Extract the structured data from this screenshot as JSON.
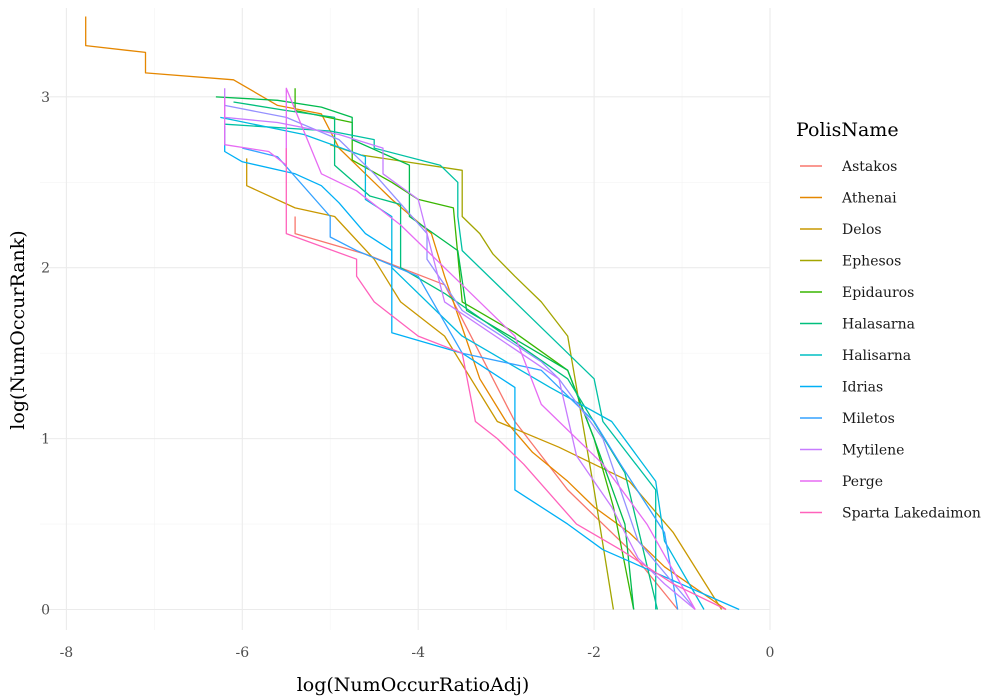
{
  "chart_data": {
    "type": "line",
    "title": "",
    "xlabel": "log(NumOccurRatioAdj)",
    "ylabel": "log(NumOccurRank)",
    "xlim": [
      -8.3,
      0.0
    ],
    "ylim": [
      -0.12,
      3.52
    ],
    "xticks": [
      -8,
      -6,
      -4,
      -2,
      0
    ],
    "xtick_labels": [
      "-8",
      "-6",
      "-4",
      "-2",
      "0"
    ],
    "yticks": [
      0,
      1,
      2,
      3
    ],
    "ytick_labels": [
      "0",
      "1",
      "2",
      "3"
    ],
    "grid": true,
    "legend_title": "PolisName",
    "legend_position": "right",
    "series": [
      {
        "name": "Astakos",
        "color": "#F8766D",
        "x": [
          -5.4,
          -5.4,
          -4.6,
          -3.7,
          -2.9,
          -2.3,
          -1.6,
          -1.05
        ],
        "y": [
          2.3,
          2.2,
          2.08,
          1.9,
          1.1,
          0.7,
          0.35,
          0.0
        ]
      },
      {
        "name": "Athenai",
        "color": "#E58700",
        "x": [
          -7.78,
          -7.78,
          -7.1,
          -7.1,
          -6.1,
          -5.6,
          -5.1,
          -4.9,
          -4.6,
          -4.3,
          -3.85,
          -3.7,
          -3.5,
          -3.3,
          -3.0,
          -2.7,
          -2.3,
          -2.0,
          -1.6,
          -1.2,
          -0.5
        ],
        "y": [
          3.47,
          3.3,
          3.26,
          3.14,
          3.1,
          2.95,
          2.9,
          2.7,
          2.55,
          2.4,
          2.2,
          1.95,
          1.65,
          1.35,
          1.1,
          0.92,
          0.75,
          0.6,
          0.45,
          0.25,
          0.0
        ]
      },
      {
        "name": "Delos",
        "color": "#C99800",
        "x": [
          -5.95,
          -5.95,
          -5.4,
          -4.95,
          -4.5,
          -4.2,
          -3.7,
          -3.1,
          -2.4,
          -1.6,
          -1.1,
          -0.55
        ],
        "y": [
          2.64,
          2.48,
          2.35,
          2.3,
          2.05,
          1.8,
          1.6,
          1.1,
          0.95,
          0.75,
          0.45,
          0.0
        ]
      },
      {
        "name": "Ephesos",
        "color": "#A3A500",
        "x": [
          -5.0,
          -4.65,
          -3.5,
          -3.5,
          -3.3,
          -3.15,
          -2.9,
          -2.6,
          -2.3,
          -2.0,
          -1.78
        ],
        "y": [
          2.72,
          2.66,
          2.57,
          2.3,
          2.2,
          2.08,
          1.95,
          1.8,
          1.6,
          0.7,
          0.0
        ]
      },
      {
        "name": "Epidauros",
        "color": "#39B600",
        "x": [
          -5.4,
          -5.4,
          -4.75,
          -4.75,
          -4.3,
          -4.0,
          -3.6,
          -3.5,
          -2.9,
          -2.3,
          -2.0,
          -1.78,
          -1.55
        ],
        "y": [
          3.05,
          2.92,
          2.85,
          2.63,
          2.5,
          2.4,
          2.35,
          1.8,
          1.62,
          1.4,
          1.0,
          0.6,
          0.0
        ]
      },
      {
        "name": "Epidauros",
        "color": "#00BB4E",
        "x": [
          -6.3,
          -5.6,
          -5.1,
          -4.75,
          -4.75,
          -4.1,
          -4.1,
          -3.55,
          -3.45,
          -2.3,
          -2.0,
          -1.65,
          -1.55
        ],
        "y": [
          3.0,
          2.98,
          2.94,
          2.88,
          2.75,
          2.6,
          2.3,
          2.1,
          1.75,
          1.4,
          1.0,
          0.5,
          0.0
        ]
      },
      {
        "name": "Halasarna",
        "color": "#00BF7D",
        "x": [
          -6.1,
          -5.5,
          -4.95,
          -4.95,
          -4.55,
          -4.2,
          -4.2,
          -3.7,
          -3.0,
          -2.3,
          -1.65,
          -1.28
        ],
        "y": [
          2.97,
          2.92,
          2.88,
          2.6,
          2.42,
          2.37,
          2.0,
          1.85,
          1.6,
          1.35,
          0.8,
          0.0
        ]
      },
      {
        "name": "Halisarna",
        "color": "#00C1A3",
        "x": [
          -6.2,
          -5.0,
          -4.5,
          -4.5,
          -3.75,
          -3.55,
          -3.55,
          -3.5,
          -2.0,
          -1.9,
          -1.3,
          -1.3
        ],
        "y": [
          2.84,
          2.8,
          2.75,
          2.7,
          2.6,
          2.5,
          2.3,
          2.1,
          1.35,
          1.1,
          0.7,
          0.0
        ]
      },
      {
        "name": "Halisarna",
        "color": "#00BAE0",
        "x": [
          -6.25,
          -5.3,
          -4.6,
          -4.6,
          -4.3,
          -4.3,
          -3.5,
          -2.5,
          -1.8,
          -1.3,
          -1.2,
          -0.75
        ],
        "y": [
          2.88,
          2.78,
          2.65,
          2.4,
          2.3,
          2.0,
          1.6,
          1.3,
          1.1,
          0.75,
          0.4,
          0.0
        ]
      },
      {
        "name": "Idrias",
        "color": "#00B0F6",
        "x": [
          -6.2,
          -6.2,
          -6.0,
          -5.4,
          -5.1,
          -4.9,
          -4.6,
          -4.3,
          -4.3,
          -3.5,
          -2.9,
          -2.9,
          -2.3,
          -1.9,
          -0.35
        ],
        "y": [
          2.83,
          2.68,
          2.62,
          2.55,
          2.48,
          2.38,
          2.2,
          2.1,
          1.62,
          1.5,
          1.3,
          0.7,
          0.5,
          0.35,
          0.0
        ]
      },
      {
        "name": "Miletos",
        "color": "#35A2FF",
        "x": [
          -6.0,
          -5.6,
          -5.0,
          -5.0,
          -4.7,
          -4.0,
          -3.5,
          -2.6,
          -2.0,
          -1.7,
          -1.2,
          -1.05
        ],
        "y": [
          2.7,
          2.65,
          2.3,
          2.18,
          2.1,
          1.95,
          1.5,
          1.4,
          1.1,
          0.85,
          0.45,
          0.0
        ]
      },
      {
        "name": "Mytilene",
        "color": "#9590FF",
        "x": [
          -6.2,
          -5.5,
          -4.9,
          -4.7,
          -4.5,
          -3.9,
          -3.9,
          -3.5,
          -2.6,
          -2.4,
          -1.9,
          -1.7,
          -1.5,
          -0.85
        ],
        "y": [
          2.95,
          2.88,
          2.75,
          2.65,
          2.55,
          2.2,
          2.05,
          1.75,
          1.45,
          1.35,
          1.0,
          0.7,
          0.4,
          0.0
        ]
      },
      {
        "name": "Mytilene",
        "color": "#C77CFF",
        "x": [
          -6.2,
          -6.2,
          -5.6,
          -4.9,
          -4.4,
          -4.4,
          -4.0,
          -3.7,
          -2.4,
          -2.2,
          -1.8,
          -1.5,
          -1.2,
          -0.85
        ],
        "y": [
          3.05,
          2.88,
          2.85,
          2.78,
          2.7,
          2.55,
          2.4,
          1.8,
          1.35,
          0.9,
          0.6,
          0.3,
          0.15,
          0.0
        ]
      },
      {
        "name": "Perge",
        "color": "#E76BF3",
        "x": [
          -6.2,
          -6.2,
          -5.7,
          -5.5,
          -5.5,
          -5.1,
          -4.7,
          -4.2,
          -3.6,
          -2.9,
          -2.6,
          -1.9,
          -1.4,
          -0.85
        ],
        "y": [
          3.0,
          2.72,
          2.68,
          2.6,
          3.05,
          2.55,
          2.45,
          2.25,
          1.95,
          1.6,
          1.2,
          0.85,
          0.5,
          0.0
        ]
      },
      {
        "name": "Sparta Lakedaimon",
        "color": "#FF62BC",
        "x": [
          -5.5,
          -5.5,
          -4.7,
          -4.7,
          -4.5,
          -4.0,
          -3.5,
          -3.35,
          -3.1,
          -2.8,
          -2.2,
          -1.7,
          -1.1,
          -0.5
        ],
        "y": [
          2.7,
          2.2,
          2.05,
          1.95,
          1.8,
          1.6,
          1.5,
          1.1,
          1.0,
          0.85,
          0.5,
          0.35,
          0.15,
          0.0
        ]
      }
    ]
  },
  "legend": {
    "title": "PolisName",
    "items": [
      {
        "label": "Astakos",
        "color": "#F8766D"
      },
      {
        "label": "Athenai",
        "color": "#E58700"
      },
      {
        "label": "Delos",
        "color": "#C99800"
      },
      {
        "label": "Ephesos",
        "color": "#A3A500"
      },
      {
        "label": "Epidauros",
        "color": "#39B600"
      },
      {
        "label": "Halasarna",
        "color": "#00BF7D"
      },
      {
        "label": "Halisarna",
        "color": "#00BFC4"
      },
      {
        "label": "Idrias",
        "color": "#00B0F6"
      },
      {
        "label": "Miletos",
        "color": "#35A2FF"
      },
      {
        "label": "Mytilene",
        "color": "#C77CFF"
      },
      {
        "label": "Perge",
        "color": "#E76BF3"
      },
      {
        "label": "Sparta Lakedaimon",
        "color": "#FF62BC"
      }
    ]
  }
}
